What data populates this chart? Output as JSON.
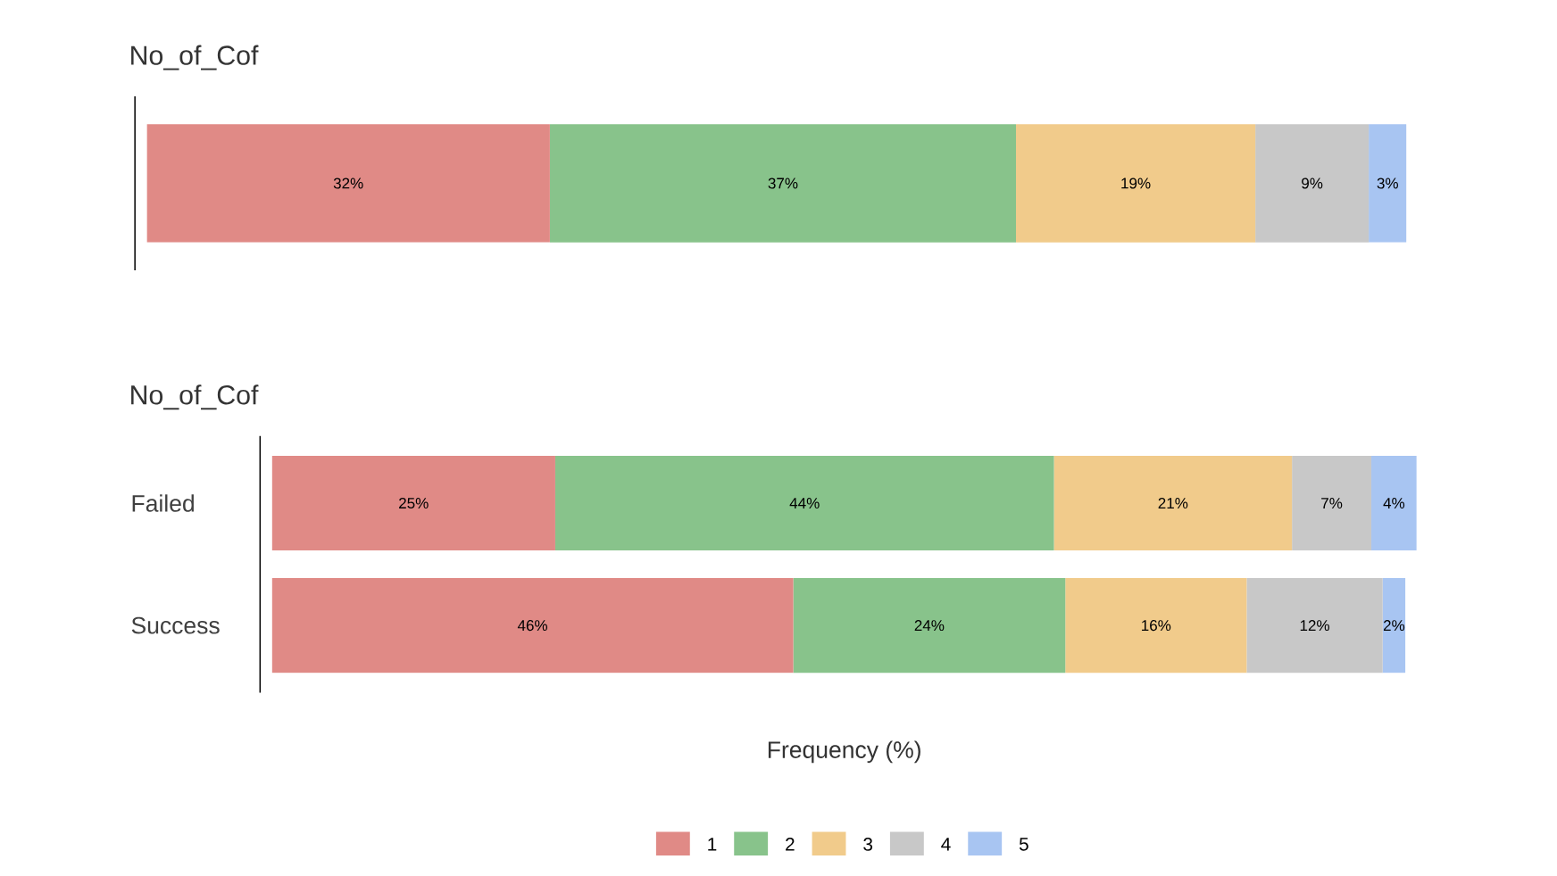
{
  "chart_data": [
    {
      "type": "bar",
      "title": "No_of_Cof",
      "orientation": "horizontal",
      "stacked": true,
      "categories": [
        null
      ],
      "tick_labels": false,
      "series": [
        {
          "color": "#e08a86",
          "values": [
            32
          ],
          "value_labels": [
            "32%"
          ]
        },
        {
          "color": "#88c38b",
          "values": [
            37
          ],
          "value_labels": [
            "37%"
          ]
        },
        {
          "color": "#f1cb8b",
          "values": [
            19
          ],
          "value_labels": [
            "19%"
          ]
        },
        {
          "color": "#c8c8c8",
          "values": [
            9
          ],
          "value_labels": [
            "9%"
          ]
        },
        {
          "color": "#a8c5f2",
          "values": [
            3
          ],
          "value_labels": [
            "3%"
          ]
        }
      ]
    },
    {
      "type": "bar",
      "title": "No_of_Cof",
      "xlabel": "Frequency (%)",
      "orientation": "horizontal",
      "stacked": true,
      "categories": [
        "Failed",
        "Success"
      ],
      "tick_labels": "y",
      "legend": "bottom",
      "series": [
        {
          "name": "1",
          "color": "#e08a86",
          "values": [
            25,
            46
          ],
          "value_labels": [
            "25%",
            "46%"
          ]
        },
        {
          "name": "2",
          "color": "#88c38b",
          "values": [
            44,
            24
          ],
          "value_labels": [
            "44%",
            "24%"
          ]
        },
        {
          "name": "3",
          "color": "#f1cb8b",
          "values": [
            21,
            16
          ],
          "value_labels": [
            "21%",
            "16%"
          ]
        },
        {
          "name": "4",
          "color": "#c8c8c8",
          "values": [
            7,
            12
          ],
          "value_labels": [
            "7%",
            "12%"
          ]
        },
        {
          "name": "5",
          "color": "#a8c5f2",
          "values": [
            4,
            2
          ],
          "value_labels": [
            "4%",
            "2%"
          ]
        }
      ]
    }
  ]
}
